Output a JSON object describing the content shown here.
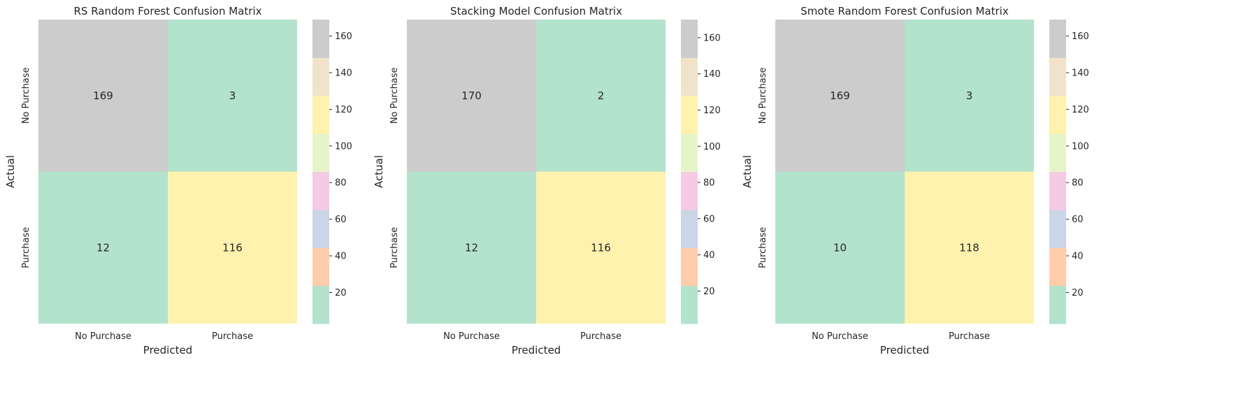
{
  "chart_data": [
    {
      "type": "heatmap",
      "title": "RS Random Forest Confusion Matrix",
      "xlabel": "Predicted",
      "ylabel": "Actual",
      "x_categories": [
        "No Purchase",
        "Purchase"
      ],
      "y_categories": [
        "No Purchase",
        "Purchase"
      ],
      "values": [
        [
          169,
          3
        ],
        [
          12,
          116
        ]
      ],
      "colorbar": {
        "min": 3,
        "max": 169,
        "ticks": [
          20,
          40,
          60,
          80,
          100,
          120,
          140,
          160
        ]
      }
    },
    {
      "type": "heatmap",
      "title": "Stacking Model Confusion Matrix",
      "xlabel": "Predicted",
      "ylabel": "Actual",
      "x_categories": [
        "No Purchase",
        "Purchase"
      ],
      "y_categories": [
        "No Purchase",
        "Purchase"
      ],
      "values": [
        [
          170,
          2
        ],
        [
          12,
          116
        ]
      ],
      "colorbar": {
        "min": 2,
        "max": 170,
        "ticks": [
          20,
          40,
          60,
          80,
          100,
          120,
          140,
          160
        ]
      }
    },
    {
      "type": "heatmap",
      "title": "Smote Random Forest Confusion Matrix",
      "xlabel": "Predicted",
      "ylabel": "Actual",
      "x_categories": [
        "No Purchase",
        "Purchase"
      ],
      "y_categories": [
        "No Purchase",
        "Purchase"
      ],
      "values": [
        [
          169,
          3
        ],
        [
          10,
          118
        ]
      ],
      "colorbar": {
        "min": 3,
        "max": 169,
        "ticks": [
          20,
          40,
          60,
          80,
          100,
          120,
          140,
          160
        ]
      }
    }
  ],
  "colormap": [
    "#b3e2cd",
    "#fdcdac",
    "#cbd5e8",
    "#f4cae4",
    "#e6f5c9",
    "#fff2ae",
    "#f1e2cc",
    "#cccccc"
  ]
}
